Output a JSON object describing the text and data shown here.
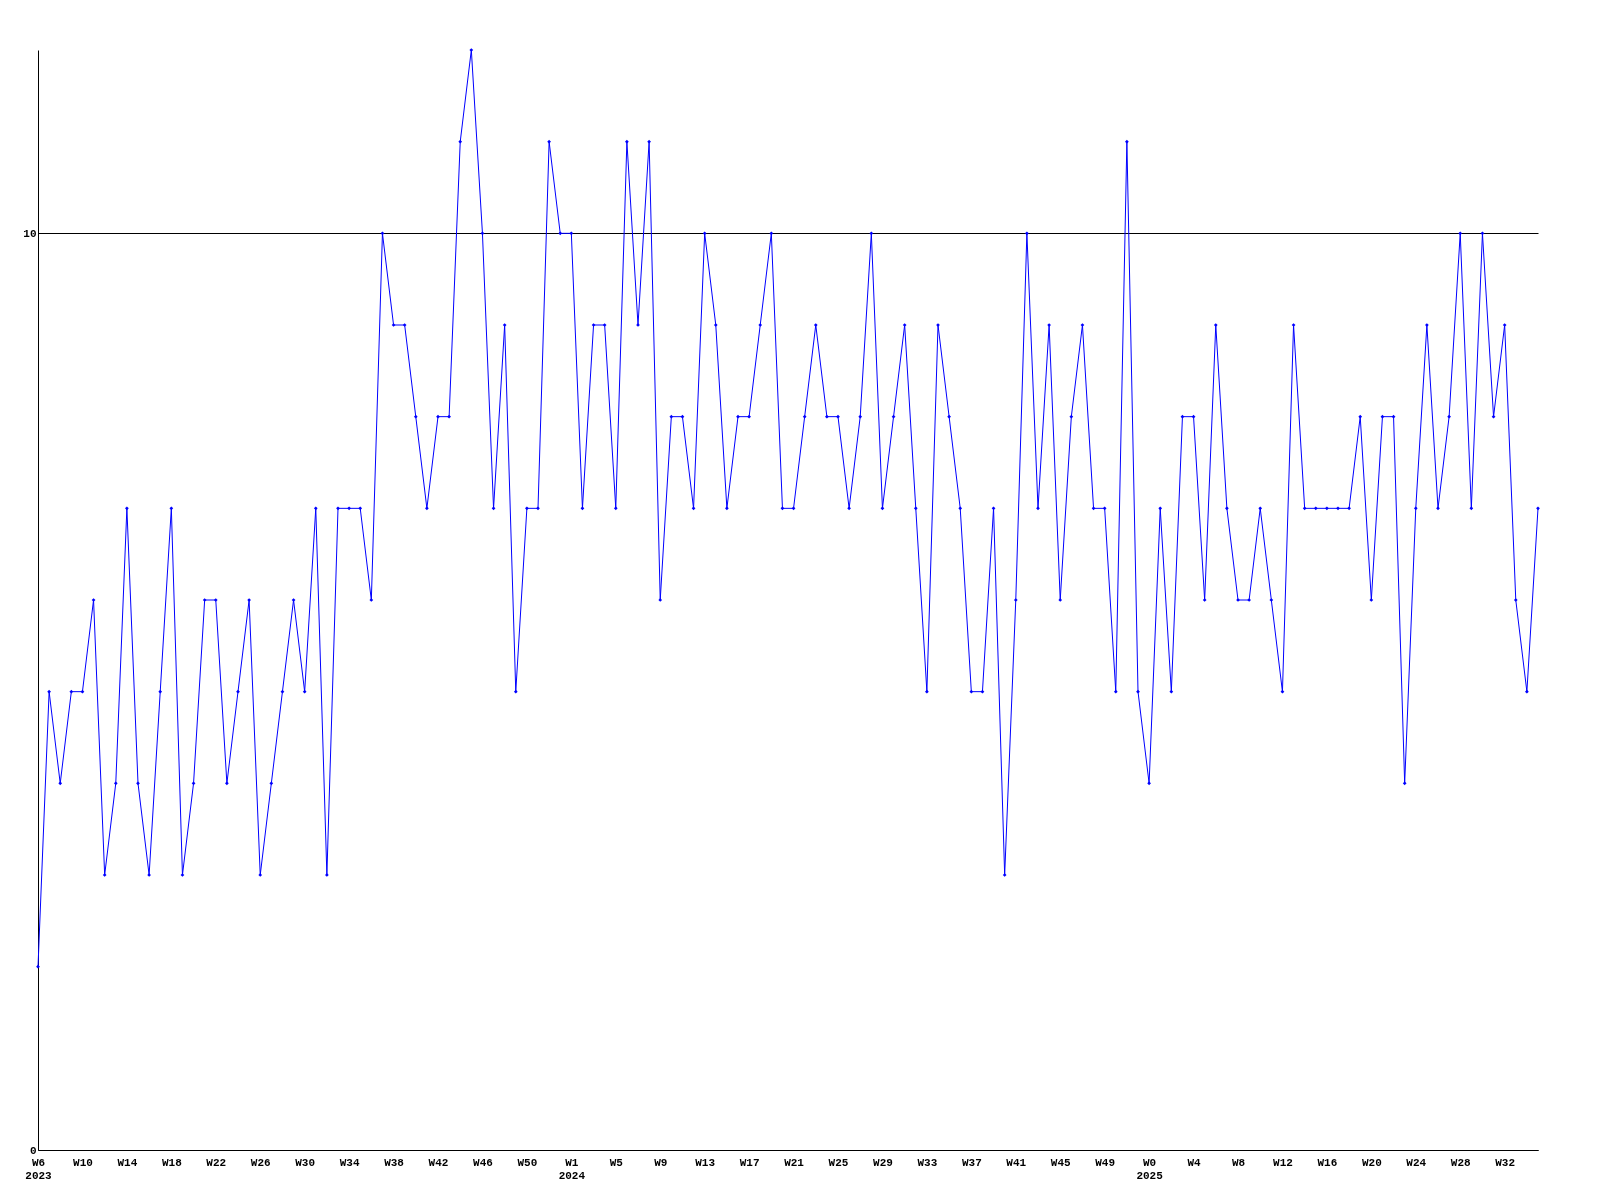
{
  "chart_data": {
    "type": "line",
    "categories": [
      "W6 2023",
      null,
      null,
      null,
      "W10",
      null,
      null,
      null,
      "W14",
      null,
      null,
      null,
      "W18",
      null,
      null,
      null,
      "W22",
      null,
      null,
      null,
      "W26",
      null,
      null,
      null,
      "W30",
      null,
      null,
      null,
      "W34",
      null,
      null,
      null,
      "W38",
      null,
      null,
      null,
      "W42",
      null,
      null,
      null,
      "W46",
      null,
      null,
      null,
      "W50",
      null,
      null,
      null,
      "W1 2024",
      null,
      null,
      null,
      "W5",
      null,
      null,
      null,
      "W9",
      null,
      null,
      null,
      "W13",
      null,
      null,
      null,
      "W17",
      null,
      null,
      null,
      "W21",
      null,
      null,
      null,
      "W25",
      null,
      null,
      null,
      "W29",
      null,
      null,
      null,
      "W33",
      null,
      null,
      null,
      "W37",
      null,
      null,
      null,
      "W41",
      null,
      null,
      null,
      "W45",
      null,
      null,
      null,
      "W49",
      null,
      null,
      null,
      "W0 2025",
      null,
      null,
      null,
      "W4",
      null,
      null,
      null,
      "W8",
      null,
      null,
      null,
      "W12",
      null,
      null,
      null,
      "W16",
      null,
      null,
      null,
      "W20",
      null,
      null,
      null,
      "W24",
      null,
      null,
      null,
      "W28",
      null,
      null,
      null,
      "W32",
      null,
      null,
      null
    ],
    "series": [
      {
        "color": "#0000ff",
        "values": [
          2,
          5,
          4,
          5,
          5,
          6,
          3,
          4,
          7,
          4,
          3,
          5,
          7,
          3,
          4,
          6,
          6,
          4,
          5,
          6,
          3,
          4,
          5,
          6,
          5,
          7,
          3,
          7,
          7,
          7,
          6,
          10,
          9,
          9,
          8,
          7,
          8,
          8,
          11,
          12,
          10,
          7,
          9,
          5,
          7,
          7,
          11,
          10,
          10,
          7,
          9,
          9,
          7,
          11,
          9,
          11,
          6,
          8,
          8,
          7,
          10,
          9,
          7,
          8,
          8,
          9,
          10,
          7,
          7,
          8,
          9,
          8,
          8,
          7,
          8,
          10,
          7,
          8,
          9,
          7,
          5,
          9,
          8,
          7,
          5,
          5,
          7,
          3,
          6,
          10,
          7,
          9,
          6,
          8,
          9,
          7,
          7,
          5,
          11,
          5,
          4,
          7,
          5,
          8,
          8,
          6,
          9,
          7,
          6,
          6,
          7,
          6,
          5,
          9,
          7,
          7,
          7,
          7,
          7,
          8,
          6,
          8,
          8,
          4,
          7,
          9,
          7,
          8,
          10,
          7,
          10,
          8,
          9,
          6,
          5,
          7
        ]
      }
    ],
    "ylim": [
      0,
      12
    ],
    "yticks": [
      0,
      10
    ],
    "grid": "y",
    "marker": "diamond",
    "line_style": "solid"
  }
}
